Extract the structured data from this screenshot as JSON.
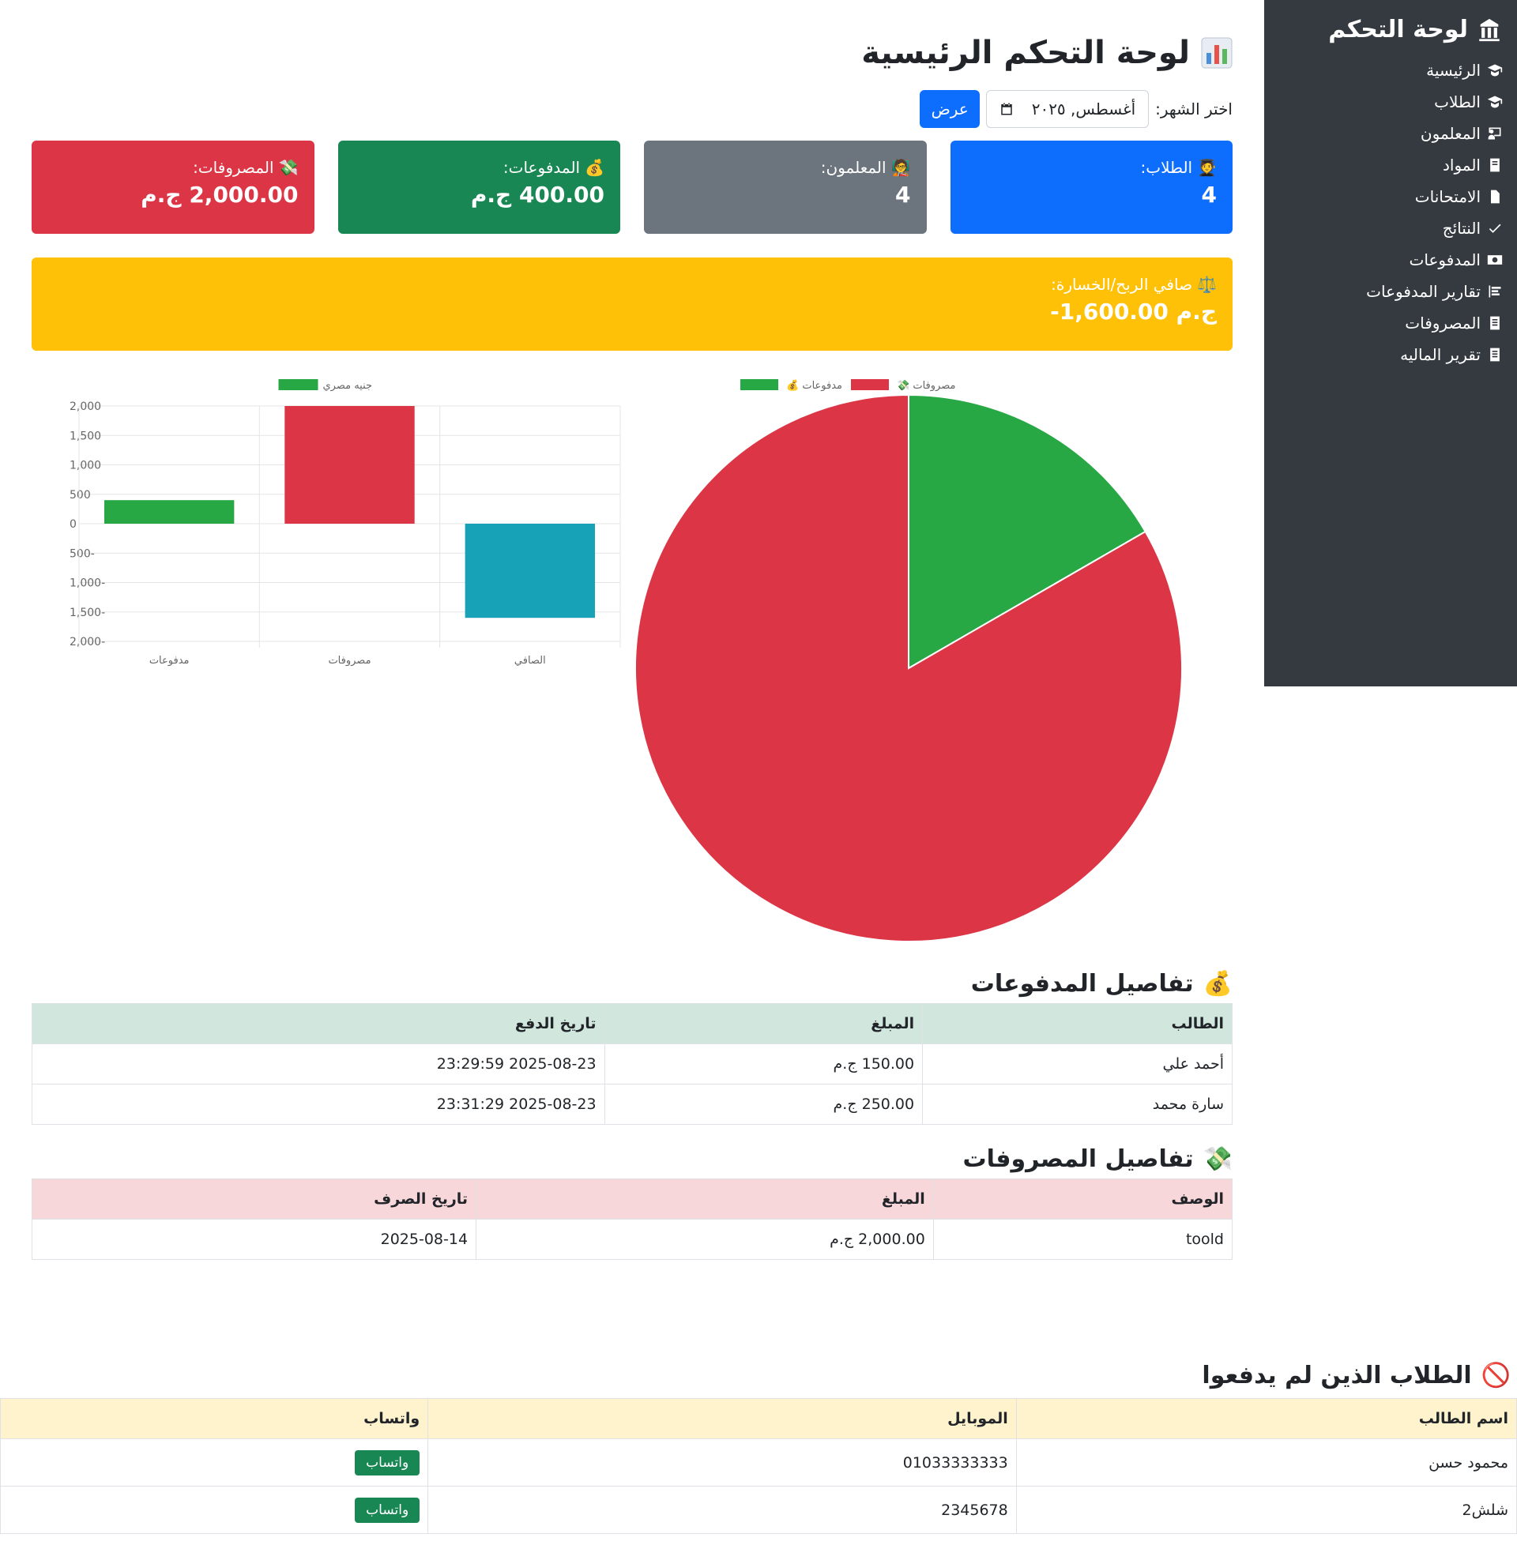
{
  "sidebar": {
    "title": "لوحة التحكم",
    "items": [
      {
        "label": "الرئيسية",
        "icon": "graduate-icon"
      },
      {
        "label": "الطلاب",
        "icon": "graduate-icon"
      },
      {
        "label": "المعلمون",
        "icon": "chalkboard-icon"
      },
      {
        "label": "المواد",
        "icon": "book-icon"
      },
      {
        "label": "الامتحانات",
        "icon": "file-icon"
      },
      {
        "label": "النتائج",
        "icon": "check-icon"
      },
      {
        "label": "المدفوعات",
        "icon": "money-icon"
      },
      {
        "label": "تقارير المدفوعات",
        "icon": "list-icon"
      },
      {
        "label": "المصروفات",
        "icon": "receipt-icon"
      },
      {
        "label": "تقرير الماليه",
        "icon": "receipt-icon"
      }
    ]
  },
  "header": {
    "title": "لوحة التحكم الرئيسية",
    "month_label": "اختر الشهر:",
    "month_value": "أغسطس, ٢٠٢٥",
    "show_button": "عرض"
  },
  "stats": {
    "students": {
      "label": "الطلاب:",
      "value": "4",
      "color": "#0d6efd"
    },
    "teachers": {
      "label": "المعلمون:",
      "value": "4",
      "color": "#6c757d"
    },
    "payments": {
      "label": "المدفوعات:",
      "value": "400.00 ج.م",
      "color": "#198754"
    },
    "expenses": {
      "label": "المصروفات:",
      "value": "2,000.00 ج.م",
      "color": "#dc3545"
    }
  },
  "profit": {
    "label": "صافي الربح/الخسارة:",
    "value": "-1,600.00 ج.م",
    "color": "#ffc107"
  },
  "chart_data": [
    {
      "type": "bar",
      "categories": [
        "مدفوعات",
        "مصروفات",
        "الصافي"
      ],
      "series": [
        {
          "name": "جنيه مصري",
          "values": [
            400,
            2000,
            -1600
          ]
        }
      ],
      "colors": [
        "#28a745",
        "#dc3545",
        "#17a2b8"
      ],
      "ylim": [
        -2000,
        2000
      ],
      "yticks": [
        "2,000",
        "1,500",
        "1,000",
        "500",
        "0",
        "-500",
        "-1,000",
        "-1,500",
        "-2,000"
      ],
      "grid": true,
      "legend": "top"
    },
    {
      "type": "pie",
      "labels": [
        "مدفوعات",
        "مصروفات"
      ],
      "values": [
        400,
        2000
      ],
      "colors": [
        "#28a745",
        "#dc3545"
      ],
      "legend": "top"
    }
  ],
  "payments_section": {
    "title": "تفاصيل المدفوعات",
    "headers": [
      "الطالب",
      "المبلغ",
      "تاريخ الدفع"
    ],
    "rows": [
      [
        "أحمد علي",
        "150.00 ج.م",
        "2025-08-23 23:29:59"
      ],
      [
        "سارة محمد",
        "250.00 ج.م",
        "2025-08-23 23:31:29"
      ]
    ]
  },
  "expenses_section": {
    "title": "تفاصيل المصروفات",
    "headers": [
      "الوصف",
      "المبلغ",
      "تاريخ الصرف"
    ],
    "rows": [
      [
        "toold",
        "2,000.00 ج.م",
        "2025-08-14"
      ]
    ]
  },
  "unpaid_section": {
    "title": "الطلاب الذين لم يدفعوا",
    "headers": [
      "اسم الطالب",
      "الموبايل",
      "واتساب"
    ],
    "rows": [
      [
        "محمود حسن",
        "01033333333",
        "واتساب"
      ],
      [
        "شلش2",
        "2345678",
        "واتساب"
      ]
    ]
  }
}
